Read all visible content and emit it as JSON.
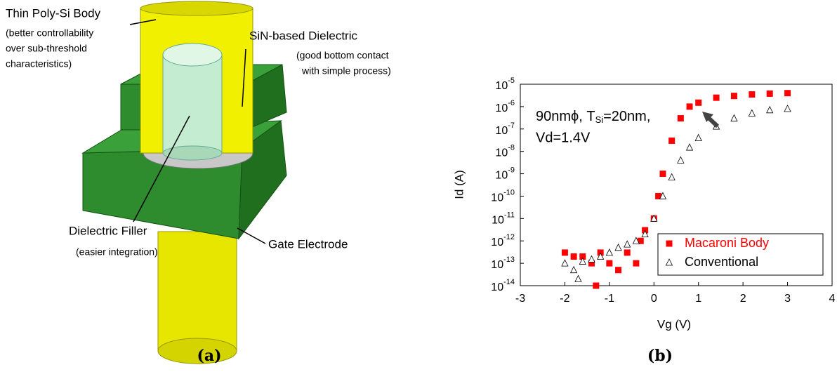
{
  "panel_a": {
    "labels": {
      "body": [
        "Thin Poly-Si Body",
        "(better controllability",
        "over sub-threshold",
        "characteristics)"
      ],
      "dielectric": [
        "SiN-based Dielectric",
        "(good bottom contact",
        "with simple process)"
      ],
      "filler": [
        "Dielectric Filler",
        "(easier integration)"
      ],
      "gate": "Gate Electrode"
    },
    "caption": "(a)"
  },
  "chart_data": {
    "type": "scatter",
    "caption": "(b)",
    "xlabel": "Vg (V)",
    "ylabel": "Id (A)",
    "annotations": [
      "90nmϕ, T",
      "Si",
      "=20nm,",
      "Vd=1.4V"
    ],
    "xlim": [
      -3,
      4
    ],
    "xticks": [
      -3,
      -2,
      -1,
      0,
      1,
      2,
      3,
      4
    ],
    "ylim": [
      1e-14,
      1e-05
    ],
    "log_y": true,
    "yticks": [
      {
        "value": 1e-14,
        "label": "10-14"
      },
      {
        "value": 1e-13,
        "label": "10-13"
      },
      {
        "value": 1e-12,
        "label": "10-12"
      },
      {
        "value": 1e-11,
        "label": "10-11"
      },
      {
        "value": 1e-10,
        "label": "10-10"
      },
      {
        "value": 1e-09,
        "label": "10-9"
      },
      {
        "value": 1e-08,
        "label": "10-8"
      },
      {
        "value": 1e-07,
        "label": "10-7"
      },
      {
        "value": 1e-06,
        "label": "10-6"
      },
      {
        "value": 1e-05,
        "label": "10-5"
      }
    ],
    "legend": "lower right",
    "series": [
      {
        "name": "Macaroni Body",
        "color": "#ff0000",
        "marker": "square",
        "x": [
          -2,
          -1.8,
          -1.6,
          -1.4,
          -1.3,
          -1.2,
          -1,
          -0.8,
          -0.6,
          -0.4,
          -0.3,
          -0.2,
          0,
          0.1,
          0.2,
          0.4,
          0.6,
          0.8,
          1.0,
          1.4,
          1.8,
          2.2,
          2.6,
          3.0
        ],
        "values": [
          3e-13,
          2e-13,
          2e-13,
          1e-13,
          1e-14,
          3e-13,
          1e-13,
          5e-14,
          3e-13,
          1e-13,
          1e-12,
          3e-12,
          1e-11,
          1e-10,
          1e-09,
          3e-08,
          3e-07,
          1e-06,
          1.5e-06,
          2.5e-06,
          3e-06,
          3.5e-06,
          3.8e-06,
          4e-06
        ]
      },
      {
        "name": "Conventional",
        "color": "#000000",
        "marker": "triangle",
        "x": [
          -2,
          -1.8,
          -1.7,
          -1.6,
          -1.4,
          -1.2,
          -1,
          -0.8,
          -0.6,
          -0.4,
          -0.2,
          0,
          0.2,
          0.4,
          0.6,
          0.8,
          1.0,
          1.4,
          1.8,
          2.2,
          2.6,
          3.0
        ],
        "values": [
          1e-13,
          5e-14,
          2e-14,
          1.2e-13,
          1.5e-13,
          2e-13,
          3e-13,
          5e-13,
          7e-13,
          1e-12,
          2e-12,
          1e-11,
          1e-10,
          7e-10,
          4e-09,
          1.5e-08,
          4e-08,
          1.3e-07,
          3e-07,
          5e-07,
          7e-07,
          8e-07
        ]
      }
    ]
  }
}
